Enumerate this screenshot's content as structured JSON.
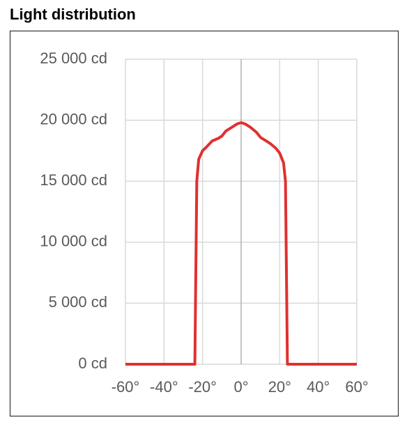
{
  "chart_data": {
    "type": "line",
    "title": "Light distribution",
    "x": [
      -60,
      -40,
      -30,
      -25,
      -24,
      -23,
      -22,
      -20,
      -18,
      -15,
      -12,
      -10,
      -8,
      -5,
      -2,
      0,
      2,
      5,
      8,
      10,
      12,
      15,
      18,
      20,
      22,
      23,
      24,
      25,
      30,
      40,
      60
    ],
    "series": [
      {
        "color": "#e03030",
        "values": [
          0,
          0,
          0,
          0,
          0,
          15000,
          16800,
          17500,
          17800,
          18300,
          18500,
          18700,
          19100,
          19400,
          19700,
          19800,
          19700,
          19400,
          19000,
          18600,
          18400,
          18100,
          17700,
          17300,
          16500,
          15000,
          0,
          0,
          0,
          0,
          0
        ]
      }
    ],
    "xlim": [
      -60,
      60
    ],
    "xticks": [
      {
        "value": -60,
        "label": "-60°"
      },
      {
        "value": -40,
        "label": "-40°"
      },
      {
        "value": -20,
        "label": "-20°"
      },
      {
        "value": 0,
        "label": "0°"
      },
      {
        "value": 20,
        "label": "20°"
      },
      {
        "value": 40,
        "label": "40°"
      },
      {
        "value": 60,
        "label": "60°"
      }
    ],
    "ylim": [
      0,
      25000
    ],
    "yticks": [
      {
        "value": 0,
        "label": "0 cd"
      },
      {
        "value": 5000,
        "label": "5 000 cd"
      },
      {
        "value": 10000,
        "label": "10 000 cd"
      },
      {
        "value": 15000,
        "label": "15 000 cd"
      },
      {
        "value": 20000,
        "label": "20 000 cd"
      },
      {
        "value": 25000,
        "label": "25 000 cd"
      }
    ],
    "grid": true
  }
}
